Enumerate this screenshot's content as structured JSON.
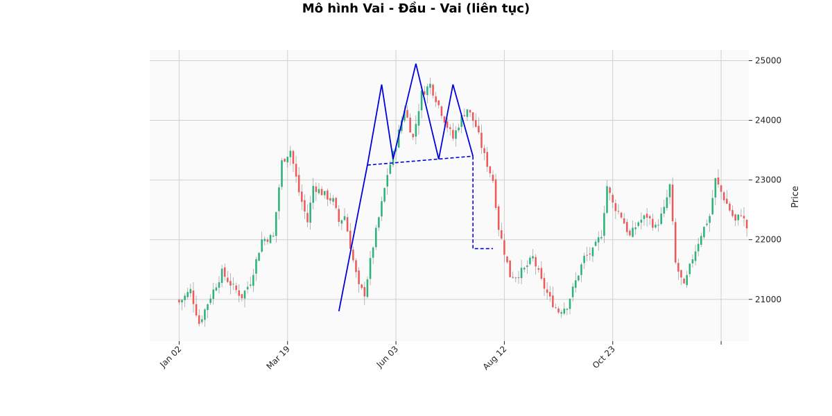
{
  "chart_data": {
    "type": "candlestick",
    "title": "Mô hình Vai - Đầu - Vai (liên tục)",
    "ylabel": "Price",
    "ylim": [
      20300,
      25180
    ],
    "y_ticks": [
      21000,
      22000,
      23000,
      24000,
      25000
    ],
    "x_tick_labels": [
      "Jan 02",
      "Mar 19",
      "Jun 03",
      "Aug 12",
      "Oct 23",
      ""
    ],
    "x_tick_positions": [
      0,
      38,
      76,
      114,
      152,
      190
    ],
    "x_range": [
      -10.3,
      199.7
    ],
    "grid": true,
    "colors": {
      "up": "#2bb37a",
      "down": "#ee5a5a",
      "wick": "#888888",
      "pattern": "#0000dd",
      "background": "#fafafa",
      "grid": "#d0d0d0"
    },
    "close_anchors": [
      [
        0,
        20950
      ],
      [
        4,
        21150
      ],
      [
        7,
        20600
      ],
      [
        11,
        21050
      ],
      [
        15,
        21450
      ],
      [
        19,
        21200
      ],
      [
        22,
        21050
      ],
      [
        25,
        21300
      ],
      [
        29,
        22000
      ],
      [
        33,
        22050
      ],
      [
        36,
        23300
      ],
      [
        39,
        23500
      ],
      [
        42,
        22800
      ],
      [
        45,
        22300
      ],
      [
        47,
        22900
      ],
      [
        51,
        22750
      ],
      [
        54,
        22650
      ],
      [
        56,
        22300
      ],
      [
        58,
        22400
      ],
      [
        61,
        21650
      ],
      [
        63,
        21200
      ],
      [
        65,
        21100
      ],
      [
        68,
        21900
      ],
      [
        71,
        22600
      ],
      [
        73,
        23100
      ],
      [
        76,
        23600
      ],
      [
        79,
        24200
      ],
      [
        82,
        23700
      ],
      [
        85,
        24450
      ],
      [
        88,
        24600
      ],
      [
        91,
        24250
      ],
      [
        94,
        23900
      ],
      [
        96,
        23700
      ],
      [
        99,
        24050
      ],
      [
        101,
        24200
      ],
      [
        104,
        23900
      ],
      [
        107,
        23400
      ],
      [
        110,
        23000
      ],
      [
        112,
        22200
      ],
      [
        114,
        21800
      ],
      [
        116,
        21400
      ],
      [
        118,
        21400
      ],
      [
        121,
        21500
      ],
      [
        124,
        21700
      ],
      [
        127,
        21300
      ],
      [
        130,
        21000
      ],
      [
        133,
        20800
      ],
      [
        136,
        20900
      ],
      [
        139,
        21300
      ],
      [
        142,
        21700
      ],
      [
        145,
        21800
      ],
      [
        148,
        22100
      ],
      [
        150,
        22900
      ],
      [
        152,
        22600
      ],
      [
        155,
        22400
      ],
      [
        158,
        22050
      ],
      [
        161,
        22300
      ],
      [
        164,
        22400
      ],
      [
        167,
        22200
      ],
      [
        170,
        22500
      ],
      [
        172,
        22900
      ],
      [
        174,
        21600
      ],
      [
        177,
        21200
      ],
      [
        180,
        21700
      ],
      [
        183,
        22100
      ],
      [
        186,
        22400
      ],
      [
        188,
        23000
      ],
      [
        190,
        22800
      ],
      [
        193,
        22500
      ],
      [
        195,
        22300
      ],
      [
        197,
        22450
      ],
      [
        199,
        22200
      ]
    ],
    "pattern_line": {
      "x": [
        56,
        66,
        71,
        75,
        83,
        91,
        96,
        103
      ],
      "y": [
        20800,
        23250,
        24600,
        23350,
        24950,
        23350,
        24600,
        23400
      ]
    },
    "neckline": {
      "x": [
        66,
        103
      ],
      "y": [
        23250,
        23400
      ]
    },
    "target_line": {
      "x": [
        103,
        103,
        110
      ],
      "y": [
        23400,
        21850,
        21850
      ]
    }
  }
}
